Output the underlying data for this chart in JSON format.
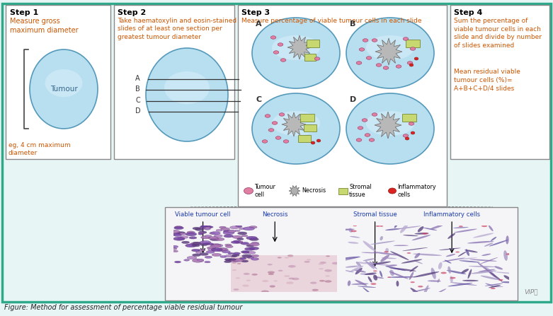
{
  "bg_color": "#e8f5f5",
  "border_color": "#2eaa8a",
  "box_bg": "#ffffff",
  "step1_title": "Step 1",
  "step1_text": "Measure gross\nmaximum diameter",
  "step1_note": "eg, 4 cm maximum\ndiameter",
  "step2_title": "Step 2",
  "step2_text": "Take haematoxylin and eosin-stained\nslides of at least one section per\ngreatest tumour diameter",
  "step3_title": "Step 3",
  "step3_text": "Measure percentage of viable tumour cells in each slide",
  "step4_title": "Step 4",
  "step4_text": "Sum the percentage of\nviable tumour cells in each\nslide and divide by number\nof slides examined",
  "step4_note": "Mean residual viable\ntumour cells (%)=\nA+B+C+D/4 slides",
  "legend_items": [
    "Tumour\ncell",
    "Necrosis",
    "Stromal\ntissue",
    "Inflammatory\ncells"
  ],
  "micro_labels": [
    "Viable tumour cell",
    "Necrosis",
    "Stromal tissue",
    "Inflammatory cells"
  ],
  "figure_caption": "Figure: Method for assessment of percentage viable residual tumour",
  "tumour_color": "#add8e6",
  "title_color": "#cc5500",
  "text_color": "#2244aa",
  "cell_pink": "#e080a0",
  "cell_red": "#cc2222",
  "necrosis_gray": "#b0b0b0",
  "stromal_green": "#c8d870",
  "slide_labels": [
    "A",
    "B",
    "C",
    "D"
  ]
}
